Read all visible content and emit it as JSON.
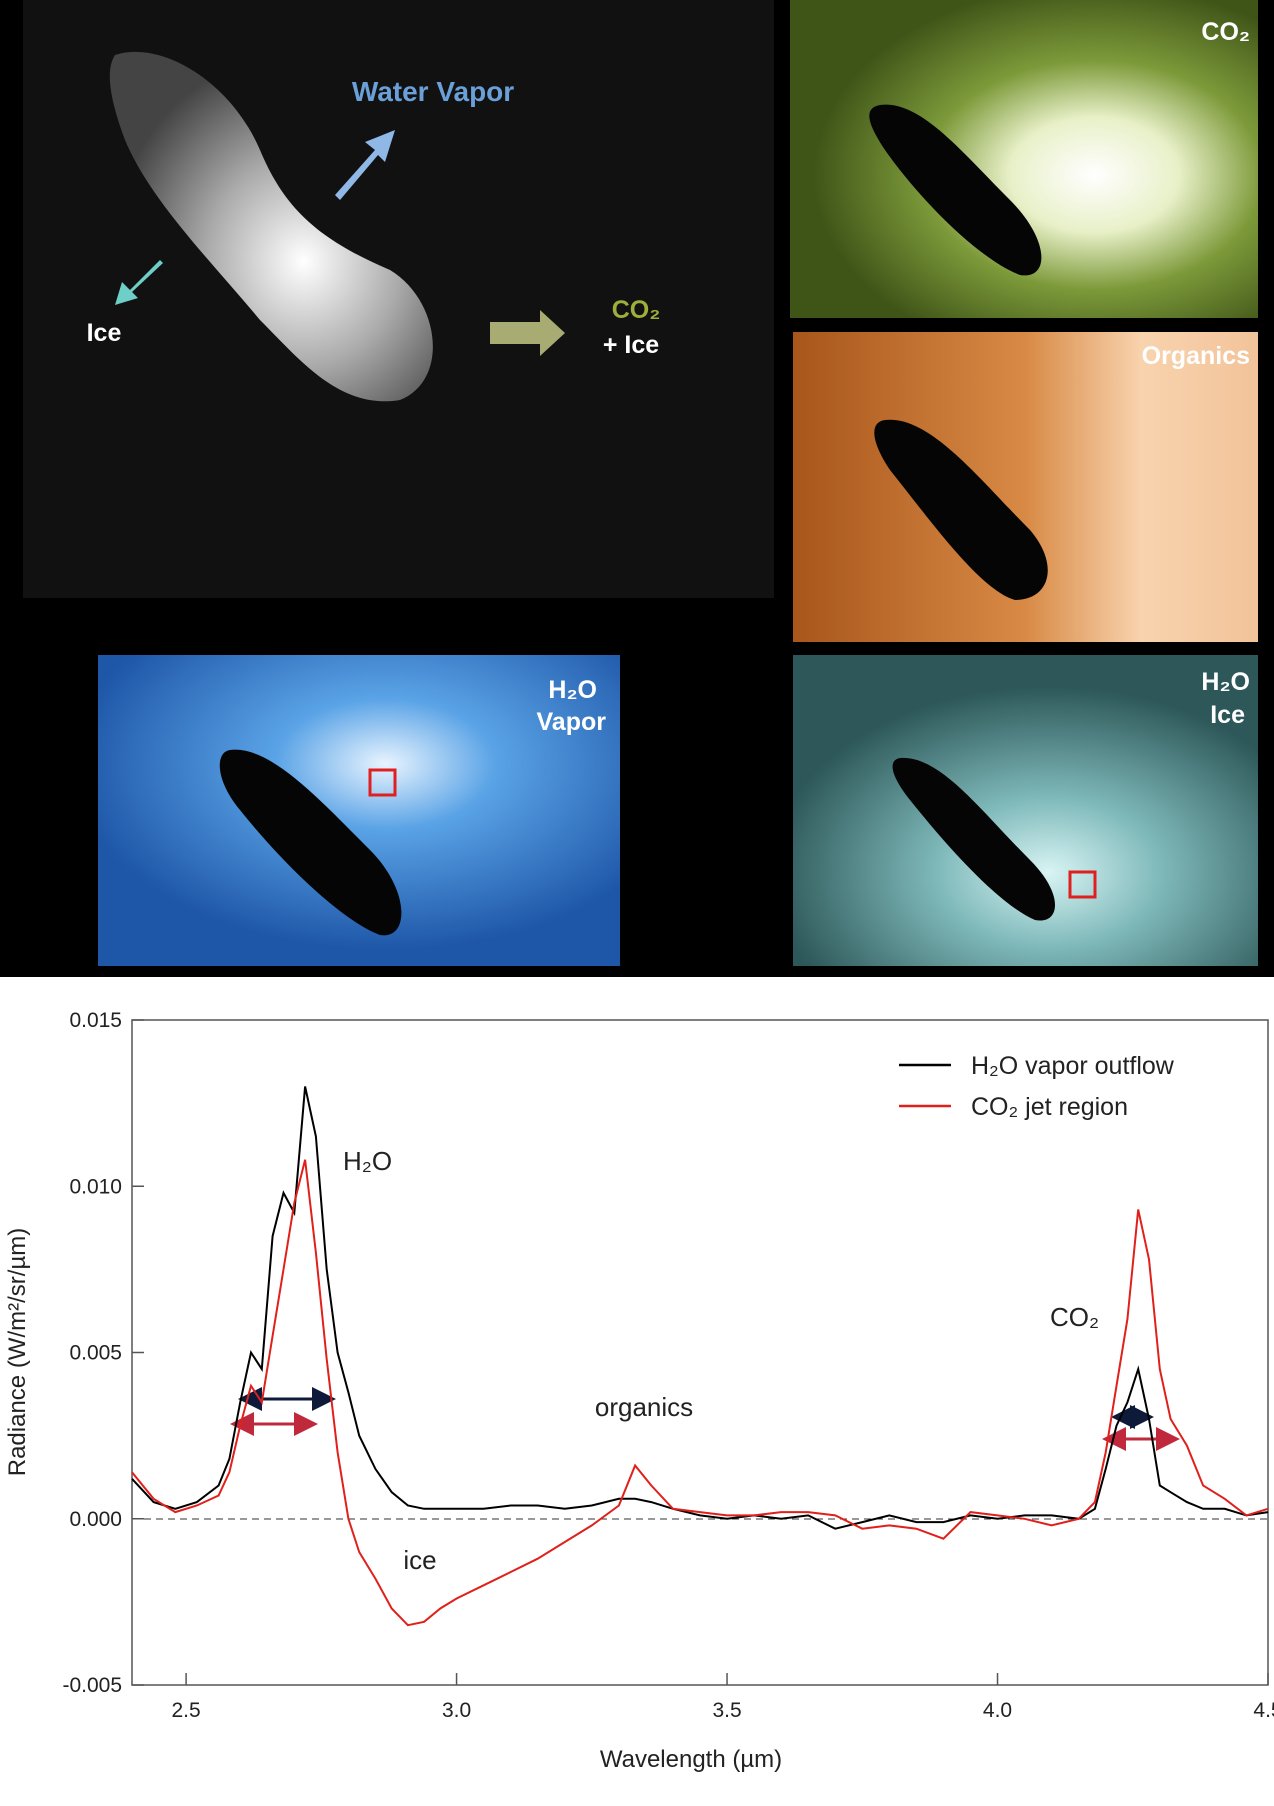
{
  "images": {
    "photo": {
      "label_water": "Water Vapor",
      "label_ice": "Ice",
      "label_co2": "CO₂",
      "label_co2_ice": "+ Ice"
    },
    "co2_panel": {
      "label": "CO₂"
    },
    "organics_panel": {
      "label": "Organics"
    },
    "vapor_panel": {
      "label_1": "H₂O",
      "label_2": "Vapor"
    },
    "ice_panel": {
      "label_1": "H₂O",
      "label_2": "Ice"
    }
  },
  "chart_data": {
    "type": "line",
    "x_label": "Wavelength (µm)",
    "y_label": "Radiance (W/m²/sr/µm)",
    "annotations": [
      "H₂O",
      "CO₂",
      "organics",
      "ice"
    ],
    "x": [
      2.4,
      2.44,
      2.48,
      2.52,
      2.56,
      2.58,
      2.6,
      2.62,
      2.64,
      2.66,
      2.68,
      2.7,
      2.72,
      2.74,
      2.76,
      2.78,
      2.8,
      2.82,
      2.85,
      2.88,
      2.91,
      2.94,
      2.97,
      3.0,
      3.05,
      3.1,
      3.15,
      3.2,
      3.25,
      3.3,
      3.33,
      3.36,
      3.4,
      3.45,
      3.5,
      3.55,
      3.6,
      3.65,
      3.7,
      3.75,
      3.8,
      3.85,
      3.9,
      3.95,
      4.0,
      4.05,
      4.1,
      4.15,
      4.18,
      4.2,
      4.22,
      4.24,
      4.26,
      4.28,
      4.3,
      4.32,
      4.35,
      4.38,
      4.42,
      4.46,
      4.5
    ],
    "series": [
      {
        "name": "H₂O vapor outflow",
        "color": "#000000",
        "values": [
          0.0012,
          0.0005,
          0.0003,
          0.0005,
          0.001,
          0.0018,
          0.0035,
          0.005,
          0.0045,
          0.0085,
          0.0098,
          0.0092,
          0.013,
          0.0115,
          0.0075,
          0.005,
          0.0038,
          0.0025,
          0.0015,
          0.0008,
          0.0004,
          0.0003,
          0.0003,
          0.0003,
          0.0003,
          0.0004,
          0.0004,
          0.0003,
          0.0004,
          0.0006,
          0.0006,
          0.0005,
          0.0003,
          0.0001,
          0.0,
          0.0001,
          0.0,
          0.0001,
          -0.0003,
          -0.0001,
          0.0001,
          -0.0001,
          -0.0001,
          0.0001,
          0.0,
          0.0001,
          0.0001,
          0.0,
          0.0003,
          0.0015,
          0.0028,
          0.0035,
          0.0045,
          0.003,
          0.001,
          0.0008,
          0.0005,
          0.0003,
          0.0003,
          0.0001,
          0.0002
        ]
      },
      {
        "name": "CO₂ jet region",
        "color": "#e0201b",
        "values": [
          0.0014,
          0.0006,
          0.0002,
          0.0004,
          0.0007,
          0.0014,
          0.0028,
          0.004,
          0.0035,
          0.0055,
          0.0075,
          0.0095,
          0.0108,
          0.008,
          0.0048,
          0.002,
          0.0,
          -0.001,
          -0.0018,
          -0.0027,
          -0.0032,
          -0.0031,
          -0.0027,
          -0.0024,
          -0.002,
          -0.0016,
          -0.0012,
          -0.0007,
          -0.0002,
          0.0004,
          0.0016,
          0.001,
          0.0003,
          0.0002,
          0.0001,
          0.0001,
          0.0002,
          0.0002,
          0.0001,
          -0.0003,
          -0.0002,
          -0.0003,
          -0.0006,
          0.0002,
          0.0001,
          0.0,
          -0.0002,
          0.0,
          0.0005,
          0.002,
          0.004,
          0.006,
          0.0093,
          0.0078,
          0.0045,
          0.003,
          0.0022,
          0.001,
          0.0006,
          0.0001,
          0.0003
        ]
      }
    ],
    "xlim": [
      2.4,
      4.5
    ],
    "ylim": [
      -0.005,
      0.015
    ],
    "xticks": [
      2.5,
      {
        "value": 3.0,
        "label": "3.0"
      },
      3.5,
      {
        "value": 4.0,
        "label": "4.0"
      },
      4.5
    ],
    "yticks": [
      -0.005,
      {
        "value": 0,
        "label": "0.000"
      },
      0.005,
      {
        "value": 0.01,
        "label": "0.010"
      },
      0.015
    ],
    "legend": "upper right"
  }
}
